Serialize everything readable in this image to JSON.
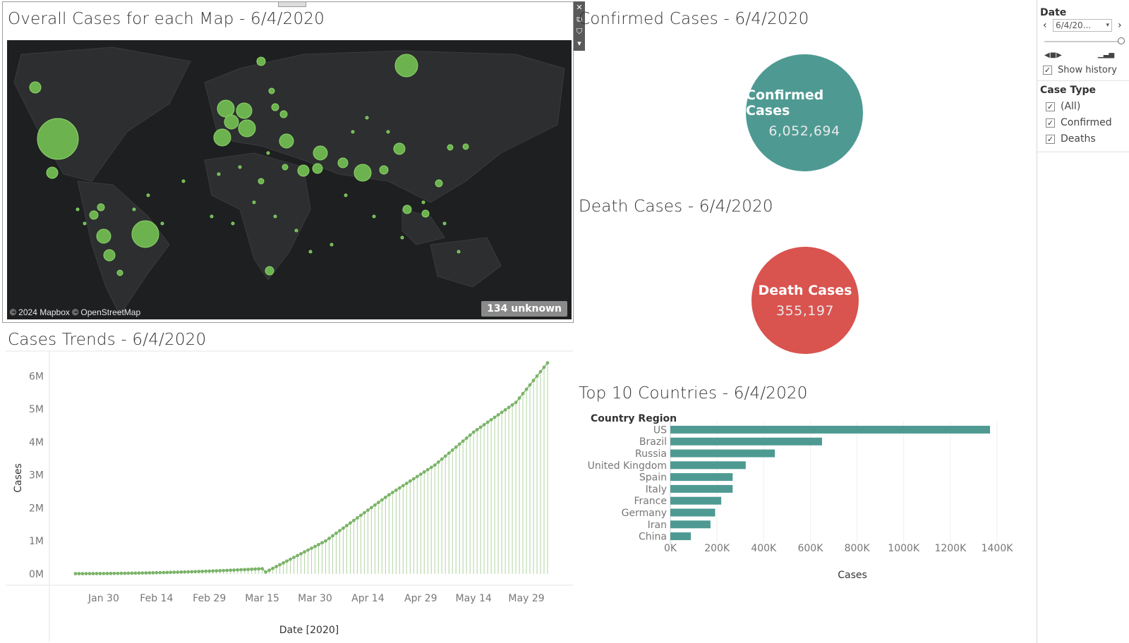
{
  "map_panel": {
    "title": "Overall Cases for each Map  - 6/4/2020",
    "credit": "© 2024 Mapbox © OpenStreetMap",
    "unknown_badge": "134 unknown",
    "marker_color": "#6cb34f",
    "background_color": "#1e1f20",
    "toolbar_icons": [
      "close-icon",
      "popout-icon",
      "filter-icon",
      "dropdown-icon"
    ]
  },
  "confirmed_panel": {
    "title": "Confirmed Cases  - 6/4/2020",
    "circle_label": "Confirmed Cases",
    "circle_value": "6,052,694",
    "color": "#4e9a93"
  },
  "death_panel": {
    "title": "Death Cases  - 6/4/2020",
    "circle_label": "Death Cases",
    "circle_value": "355,197",
    "color": "#d9534f"
  },
  "filters": {
    "date_header": "Date",
    "date_value": "6/4/20...",
    "show_history_label": "Show history",
    "case_type_header": "Case Type",
    "case_type_options": [
      {
        "label": "(All)",
        "checked": true
      },
      {
        "label": "Confirmed",
        "checked": true
      },
      {
        "label": "Deaths",
        "checked": true
      }
    ]
  },
  "chart_data": [
    {
      "type": "line",
      "title": "Cases Trends - 6/4/2020",
      "xlabel": "Date [2020]",
      "ylabel": "Cases",
      "ylim": [
        0,
        6500000
      ],
      "y_ticks": [
        "0M",
        "1M",
        "2M",
        "3M",
        "4M",
        "5M",
        "6M"
      ],
      "x_ticks": [
        "Jan 30",
        "Feb 14",
        "Feb 29",
        "Mar 15",
        "Mar 30",
        "Apr 14",
        "Apr 29",
        "May 14",
        "May 29"
      ],
      "x_start": "Jan 22",
      "x_end": "Jun 4",
      "color": "#7bb369",
      "series": [
        {
          "values": [
            0,
            1000000,
            2400000,
            3300000,
            4300000,
            5200000,
            6400000
          ],
          "x": [
            "Mar 15",
            "Apr 2",
            "Apr 20",
            "May 3",
            "May 14",
            "May 26",
            "Jun 4"
          ]
        }
      ]
    },
    {
      "type": "bar",
      "title": "Top 10 Countries - 6/4/2020",
      "orientation": "horizontal",
      "category_header": "Country Region",
      "xlabel": "Cases",
      "xlim": [
        0,
        1400000
      ],
      "x_ticks": [
        "0K",
        "200K",
        "400K",
        "600K",
        "800K",
        "1000K",
        "1200K",
        "1400K"
      ],
      "color": "#4e9a93",
      "categories": [
        "US",
        "Brazil",
        "Russia",
        "United Kingdom",
        "Spain",
        "Italy",
        "France",
        "Germany",
        "Iran",
        "China"
      ],
      "values": [
        1370000,
        650000,
        448000,
        323000,
        267000,
        267000,
        218000,
        192000,
        172000,
        88000
      ]
    }
  ]
}
